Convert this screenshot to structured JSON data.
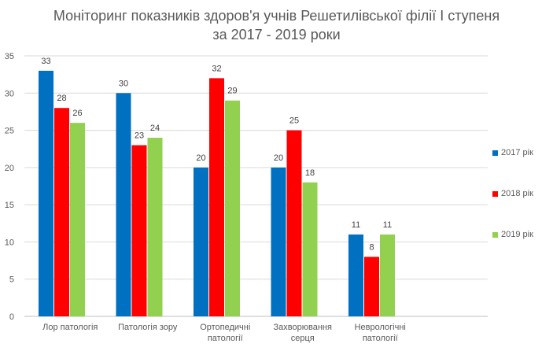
{
  "title": {
    "line1": "Моніторинг показників здоров'я учнів Решетилівської філії І ступеня",
    "line2": "за 2017 - 2019 роки"
  },
  "chart_data": {
    "type": "bar",
    "categories": [
      [
        "Лор патологія"
      ],
      [
        "Патологія зору"
      ],
      [
        "Ортопедичні",
        "патології"
      ],
      [
        "Захворювання",
        "серця"
      ],
      [
        "Неврологічні",
        "патології"
      ]
    ],
    "series": [
      {
        "name": "2017 рік",
        "color": "#0070C0",
        "values": [
          33,
          30,
          20,
          20,
          11
        ]
      },
      {
        "name": "2018 рік",
        "color": "#FF0000",
        "values": [
          28,
          23,
          32,
          25,
          8
        ]
      },
      {
        "name": "2019 рік",
        "color": "#92D050",
        "values": [
          26,
          24,
          29,
          18,
          11
        ]
      }
    ],
    "ylim": [
      0,
      35
    ],
    "yticks": [
      0,
      5,
      10,
      15,
      20,
      25,
      30,
      35
    ],
    "grid": true,
    "legend_position": "right"
  }
}
